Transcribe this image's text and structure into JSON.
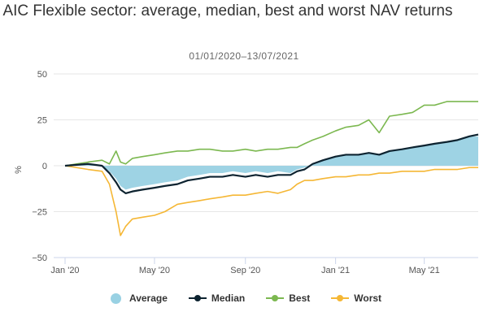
{
  "chart_data": {
    "type": "area",
    "title": "AIC Flexible sector: average, median, best and worst NAV returns",
    "subtitle": "01/01/2020–13/07/2021",
    "xlabel": "",
    "ylabel": "%",
    "ylim": [
      -50,
      50
    ],
    "yticks": [
      "50",
      "25",
      "0",
      "−25",
      "−50"
    ],
    "xticks": [
      "Jan '20",
      "May '20",
      "Sep '20",
      "Jan '21",
      "May '21"
    ],
    "grid": true,
    "legend_position": "bottom",
    "series": [
      {
        "name": "Average",
        "kind": "area",
        "color": "#99d1e3",
        "x": [
          "2020-01-01",
          "2020-02-01",
          "2020-02-20",
          "2020-03-01",
          "2020-03-10",
          "2020-03-16",
          "2020-03-23",
          "2020-04-01",
          "2020-04-15",
          "2020-05-01",
          "2020-05-15",
          "2020-06-01",
          "2020-06-15",
          "2020-07-01",
          "2020-07-15",
          "2020-08-01",
          "2020-08-15",
          "2020-09-01",
          "2020-09-15",
          "2020-10-01",
          "2020-10-15",
          "2020-11-01",
          "2020-11-10",
          "2020-11-20",
          "2020-12-01",
          "2020-12-15",
          "2021-01-01",
          "2021-01-15",
          "2021-02-01",
          "2021-02-15",
          "2021-03-01",
          "2021-03-15",
          "2021-04-01",
          "2021-04-15",
          "2021-05-01",
          "2021-05-15",
          "2021-06-01",
          "2021-06-15",
          "2021-07-01",
          "2021-07-13"
        ],
        "values": [
          0,
          1,
          0,
          -3,
          -7,
          -11,
          -13,
          -12,
          -11,
          -10,
          -9,
          -8,
          -6,
          -5,
          -4,
          -4,
          -3,
          -4,
          -3,
          -4,
          -3,
          -4,
          -2,
          -1,
          1,
          3,
          5,
          6,
          6,
          7,
          6,
          8,
          9,
          10,
          11,
          12,
          13,
          14,
          16,
          16
        ]
      },
      {
        "name": "Median",
        "kind": "line",
        "color": "#0d2330",
        "x": [
          "2020-01-01",
          "2020-02-01",
          "2020-02-20",
          "2020-03-01",
          "2020-03-10",
          "2020-03-16",
          "2020-03-23",
          "2020-04-01",
          "2020-04-15",
          "2020-05-01",
          "2020-05-15",
          "2020-06-01",
          "2020-06-15",
          "2020-07-01",
          "2020-07-15",
          "2020-08-01",
          "2020-08-15",
          "2020-09-01",
          "2020-09-15",
          "2020-10-01",
          "2020-10-15",
          "2020-11-01",
          "2020-11-10",
          "2020-11-20",
          "2020-12-01",
          "2020-12-15",
          "2021-01-01",
          "2021-01-15",
          "2021-02-01",
          "2021-02-15",
          "2021-03-01",
          "2021-03-15",
          "2021-04-01",
          "2021-04-15",
          "2021-05-01",
          "2021-05-15",
          "2021-06-01",
          "2021-06-15",
          "2021-07-01",
          "2021-07-13"
        ],
        "values": [
          0,
          1,
          0,
          -4,
          -9,
          -13,
          -15,
          -14,
          -13,
          -12,
          -11,
          -10,
          -8,
          -7,
          -6,
          -6,
          -5,
          -6,
          -5,
          -6,
          -5,
          -5,
          -3,
          -2,
          1,
          3,
          5,
          6,
          6,
          7,
          6,
          8,
          9,
          10,
          11,
          12,
          13,
          14,
          16,
          17
        ]
      },
      {
        "name": "Best",
        "kind": "line",
        "color": "#7cb850",
        "x": [
          "2020-01-01",
          "2020-02-01",
          "2020-02-20",
          "2020-03-01",
          "2020-03-10",
          "2020-03-16",
          "2020-03-23",
          "2020-04-01",
          "2020-04-15",
          "2020-05-01",
          "2020-05-15",
          "2020-06-01",
          "2020-06-15",
          "2020-07-01",
          "2020-07-15",
          "2020-08-01",
          "2020-08-15",
          "2020-09-01",
          "2020-09-15",
          "2020-10-01",
          "2020-10-15",
          "2020-11-01",
          "2020-11-10",
          "2020-11-20",
          "2020-12-01",
          "2020-12-15",
          "2021-01-01",
          "2021-01-15",
          "2021-02-01",
          "2021-02-15",
          "2021-03-01",
          "2021-03-15",
          "2021-04-01",
          "2021-04-15",
          "2021-05-01",
          "2021-05-15",
          "2021-06-01",
          "2021-06-15",
          "2021-07-01",
          "2021-07-13"
        ],
        "values": [
          0,
          2,
          3,
          1,
          8,
          2,
          1,
          4,
          5,
          6,
          7,
          8,
          8,
          9,
          9,
          8,
          8,
          9,
          8,
          9,
          9,
          10,
          10,
          12,
          14,
          16,
          19,
          21,
          22,
          25,
          18,
          27,
          28,
          29,
          33,
          33,
          35,
          35,
          35,
          35
        ]
      },
      {
        "name": "Worst",
        "kind": "line",
        "color": "#f5b735",
        "x": [
          "2020-01-01",
          "2020-02-01",
          "2020-02-20",
          "2020-03-01",
          "2020-03-10",
          "2020-03-16",
          "2020-03-23",
          "2020-04-01",
          "2020-04-15",
          "2020-05-01",
          "2020-05-15",
          "2020-06-01",
          "2020-06-15",
          "2020-07-01",
          "2020-07-15",
          "2020-08-01",
          "2020-08-15",
          "2020-09-01",
          "2020-09-15",
          "2020-10-01",
          "2020-10-15",
          "2020-11-01",
          "2020-11-10",
          "2020-11-20",
          "2020-12-01",
          "2020-12-15",
          "2021-01-01",
          "2021-01-15",
          "2021-02-01",
          "2021-02-15",
          "2021-03-01",
          "2021-03-15",
          "2021-04-01",
          "2021-04-15",
          "2021-05-01",
          "2021-05-15",
          "2021-06-01",
          "2021-06-15",
          "2021-07-01",
          "2021-07-13"
        ],
        "values": [
          0,
          -2,
          -3,
          -10,
          -25,
          -38,
          -33,
          -29,
          -28,
          -27,
          -25,
          -21,
          -20,
          -19,
          -18,
          -17,
          -16,
          -16,
          -15,
          -14,
          -15,
          -13,
          -10,
          -8,
          -8,
          -7,
          -6,
          -6,
          -5,
          -5,
          -4,
          -4,
          -3,
          -3,
          -3,
          -2,
          -2,
          -2,
          -1,
          -1
        ]
      }
    ]
  },
  "legend": {
    "average": "Average",
    "median": "Median",
    "best": "Best",
    "worst": "Worst"
  }
}
